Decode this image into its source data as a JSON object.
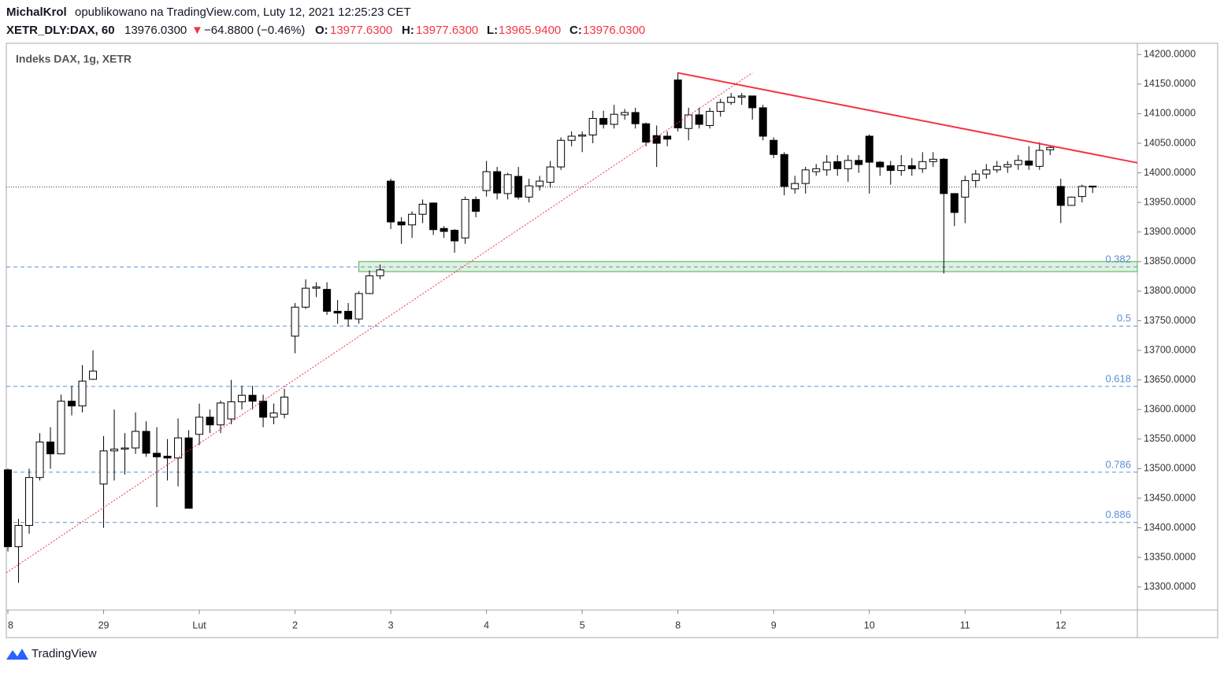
{
  "header": {
    "author": "MichalKrol",
    "published": " opublikowano na TradingView.com, Luty 12, 2021 12:25:23 CET",
    "symbol": "XETR_DLY:DAX, 60",
    "last": "13976.0300",
    "arrow": "▼",
    "change": "−64.8800 (−0.46%)",
    "o_label": "O:",
    "o": "13977.6300",
    "h_label": "H:",
    "h": "13977.6300",
    "l_label": "L:",
    "l": "13965.9400",
    "c_label": "C:",
    "c": "13976.0300"
  },
  "footer": "TradingView",
  "chart_data": {
    "type": "candlestick",
    "legend": "Indeks DAX, 1g, XETR",
    "up_color": "#ffffff",
    "down_color": "#000000",
    "open": [
      13498,
      13368,
      13404,
      13485,
      13545,
      13525,
      13614,
      13606,
      13651,
      13474,
      13530,
      13533,
      13535,
      13563,
      13526,
      13521,
      13518,
      13552,
      13558,
      13587,
      13574,
      13584,
      13613,
      13624,
      13614,
      13587,
      13592,
      13724,
      13773,
      13805,
      13803,
      13766,
      13766,
      13753,
      13796,
      13826,
      13986,
      13917,
      13912,
      13930,
      13949,
      13906,
      13903,
      13890,
      13955,
      13970,
      14002,
      13965,
      13994,
      13959,
      13978,
      13984,
      14010,
      14055,
      14062,
      14064,
      14092,
      14082,
      14098,
      14102,
      14083,
      14063,
      14062,
      14157,
      14075,
      14098,
      14080,
      14104,
      14119,
      14128,
      14130,
      14110,
      14055,
      14031,
      13973,
      13982,
      14002,
      14005,
      14019,
      14007,
      14021,
      14062,
      14018,
      14012,
      14004,
      14012,
      14007,
      14019,
      14023,
      13965,
      13959,
      13987,
      13998,
      14005,
      14010,
      14014,
      14020,
      14011,
      14039,
      13977,
      13945,
      13960,
      13977.63
    ],
    "high": [
      13500,
      13415,
      13500,
      13560,
      13570,
      13625,
      13640,
      13675,
      13700,
      13555,
      13600,
      13560,
      13595,
      13580,
      13570,
      13550,
      13585,
      13565,
      13610,
      13600,
      13615,
      13650,
      13640,
      13640,
      13625,
      13610,
      13635,
      13780,
      13820,
      13815,
      13815,
      13785,
      13780,
      13800,
      13835,
      13845,
      13990,
      13925,
      13935,
      13955,
      13950,
      13910,
      13905,
      13960,
      13960,
      14020,
      14010,
      14000,
      14010,
      13990,
      13995,
      14020,
      14060,
      14070,
      14070,
      14105,
      14105,
      14115,
      14108,
      14110,
      14085,
      14080,
      14070,
      14170,
      14110,
      14110,
      14110,
      14125,
      14135,
      14135,
      14130,
      14115,
      14060,
      14035,
      13995,
      14010,
      14015,
      14030,
      14030,
      14030,
      14030,
      14065,
      14020,
      14020,
      14030,
      14025,
      14035,
      14035,
      14025,
      13965,
      13995,
      14005,
      14015,
      14020,
      14020,
      14030,
      14045,
      14052,
      14045,
      13990,
      13960,
      13980,
      13977.63
    ],
    "low": [
      13360,
      13307,
      13390,
      13480,
      13500,
      13525,
      13590,
      13595,
      13650,
      13400,
      13480,
      13490,
      13525,
      13520,
      13435,
      13480,
      13470,
      13433,
      13540,
      13560,
      13560,
      13575,
      13600,
      13600,
      13570,
      13575,
      13585,
      13695,
      13770,
      13790,
      13760,
      13745,
      13740,
      13745,
      13795,
      13820,
      13905,
      13880,
      13890,
      13915,
      13895,
      13890,
      13865,
      13880,
      13925,
      13960,
      13955,
      13955,
      13955,
      13950,
      13970,
      13975,
      14005,
      14045,
      14035,
      14050,
      14075,
      14075,
      14090,
      14075,
      14045,
      14010,
      14045,
      14070,
      14055,
      14075,
      14075,
      14095,
      14115,
      14115,
      14090,
      14055,
      14025,
      13962,
      13965,
      13965,
      13995,
      13995,
      13995,
      13985,
      14000,
      13965,
      13995,
      13980,
      13995,
      13995,
      14000,
      14010,
      13830,
      13910,
      13915,
      13975,
      13990,
      14000,
      14000,
      14005,
      14005,
      14005,
      14030,
      13915,
      13945,
      13950,
      13965.94
    ],
    "close": [
      13368,
      13404,
      13485,
      13545,
      13525,
      13614,
      13606,
      13648,
      13665,
      13530,
      13533,
      13535,
      13563,
      13526,
      13520,
      13518,
      13552,
      13433,
      13587,
      13574,
      13611,
      13613,
      13624,
      13614,
      13587,
      13594,
      13621,
      13773,
      13805,
      13807,
      13766,
      13763,
      13753,
      13796,
      13826,
      13836,
      13917,
      13912,
      13930,
      13947,
      13904,
      13901,
      13885,
      13955,
      13935,
      14002,
      13966,
      13997,
      13959,
      13978,
      13986,
      14010,
      14055,
      14062,
      14064,
      14092,
      14082,
      14099,
      14102,
      14083,
      14052,
      14050,
      14057,
      14076,
      14098,
      14082,
      14104,
      14119,
      14128,
      14130,
      14110,
      14062,
      14031,
      13977,
      13982,
      14005,
      14007,
      14018,
      14007,
      14021,
      14014,
      14018,
      14010,
      14004,
      14012,
      14007,
      14019,
      14023,
      13965,
      13933,
      13987,
      13998,
      14005,
      14011,
      14014,
      14021,
      14013,
      14038,
      14043,
      13945,
      13959,
      13977,
      13976.03
    ],
    "xlim": [
      -0.15,
      106.2
    ],
    "xticks": [
      {
        "value": 0,
        "label": "8"
      },
      {
        "value": 9,
        "label": "29"
      },
      {
        "value": 18,
        "label": "Lut"
      },
      {
        "value": 27,
        "label": "2"
      },
      {
        "value": 36,
        "label": "3"
      },
      {
        "value": 45,
        "label": "4"
      },
      {
        "value": 54,
        "label": "5"
      },
      {
        "value": 63,
        "label": "8"
      },
      {
        "value": 72,
        "label": "9"
      },
      {
        "value": 81,
        "label": "10"
      },
      {
        "value": 90,
        "label": "11"
      },
      {
        "value": 99,
        "label": "12"
      }
    ],
    "ylim": [
      13261,
      14219
    ],
    "yticks": [
      {
        "value": 13300,
        "label": "13300.0000"
      },
      {
        "value": 13350,
        "label": "13350.0000"
      },
      {
        "value": 13400,
        "label": "13400.0000"
      },
      {
        "value": 13450,
        "label": "13450.0000"
      },
      {
        "value": 13500,
        "label": "13500.0000"
      },
      {
        "value": 13550,
        "label": "13550.0000"
      },
      {
        "value": 13600,
        "label": "13600.0000"
      },
      {
        "value": 13650,
        "label": "13650.0000"
      },
      {
        "value": 13700,
        "label": "13700.0000"
      },
      {
        "value": 13750,
        "label": "13750.0000"
      },
      {
        "value": 13800,
        "label": "13800.0000"
      },
      {
        "value": 13850,
        "label": "13850.0000"
      },
      {
        "value": 13900,
        "label": "13900.0000"
      },
      {
        "value": 13950,
        "label": "13950.0000"
      },
      {
        "value": 14000,
        "label": "14000.0000"
      },
      {
        "value": 14050,
        "label": "14050.0000"
      },
      {
        "value": 14100,
        "label": "14100.0000"
      },
      {
        "value": 14150,
        "label": "14150.0000"
      },
      {
        "value": 14200,
        "label": "14200.0000"
      }
    ],
    "levels": [
      {
        "value": 13841,
        "label": "0.382"
      },
      {
        "value": 13741,
        "label": "0.5"
      },
      {
        "value": 13639,
        "label": "0.618"
      },
      {
        "value": 13494,
        "label": "0.786"
      },
      {
        "value": 13409,
        "label": "0.886"
      }
    ],
    "level_color": "#5b8fd6",
    "price_line": 13976.03,
    "zone": {
      "from": 33,
      "low": 13833,
      "high": 13850,
      "color": "#4caf50"
    },
    "lines": [
      {
        "x": [
          63,
          106.2
        ],
        "y": [
          14169,
          14017
        ],
        "color": "#f23645",
        "style": "solid"
      },
      {
        "x": [
          -0.15,
          70
        ],
        "y": [
          13324,
          14169
        ],
        "color": "#f23645",
        "style": "dotted"
      }
    ]
  }
}
